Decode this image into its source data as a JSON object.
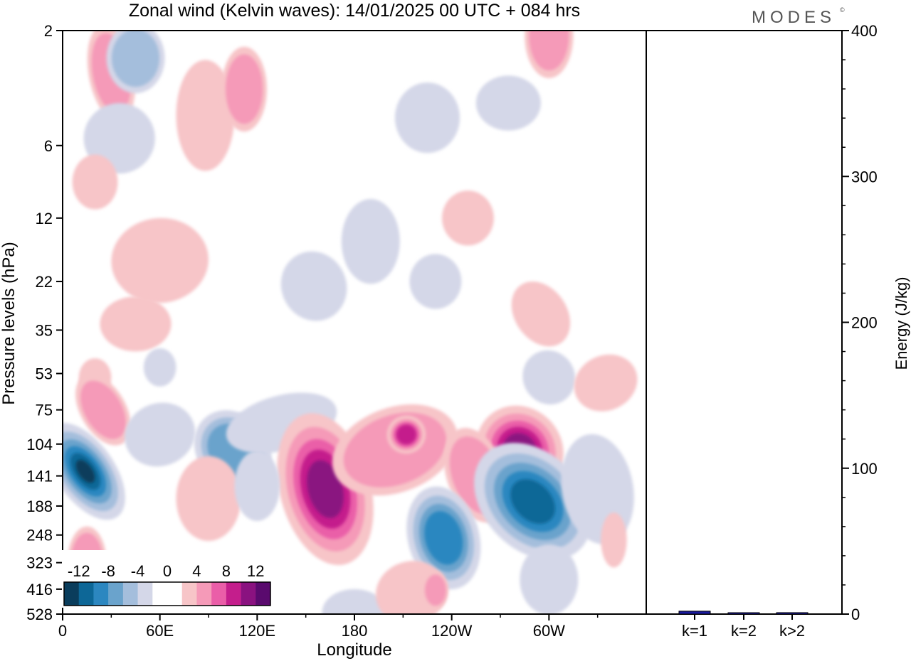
{
  "title": "Zonal wind (Kelvin waves):  14/01/2025  00 UTC  + 084 hrs",
  "logo": "MODES",
  "logo_mark": "©",
  "chart_data": [
    {
      "type": "heatmap",
      "title": "Zonal wind (Kelvin waves):  14/01/2025  00 UTC  + 084 hrs",
      "xlabel": "Longitude",
      "ylabel": "Pressure levels (hPa)",
      "x_ticks": [
        "0",
        "60E",
        "120E",
        "180",
        "120W",
        "60W"
      ],
      "y_ticks": [
        "2",
        "6",
        "12",
        "22",
        "35",
        "53",
        "75",
        "104",
        "141",
        "188",
        "248",
        "323",
        "416",
        "528"
      ],
      "colorbar": {
        "labels": [
          "-12",
          "-8",
          "-4",
          "0",
          "4",
          "8",
          "12"
        ],
        "colors": [
          "#0a3d5c",
          "#0d6797",
          "#2c87c0",
          "#6aa3cc",
          "#a4bedc",
          "#d4d7e8",
          "#ffffff",
          "#ffffff",
          "#f7c5c8",
          "#f59ab8",
          "#ea5ea8",
          "#c41e8c",
          "#8a1280",
          "#5a0a6e"
        ]
      },
      "features": [
        {
          "sign": "neg",
          "level": 6,
          "lon": 12,
          "p": 135
        },
        {
          "sign": "neg",
          "level": 2,
          "lon": 105,
          "p": 110
        },
        {
          "sign": "neg",
          "level": 5,
          "lon": 290,
          "p": 180
        },
        {
          "sign": "neg",
          "level": 4,
          "lon": 235,
          "p": 255
        },
        {
          "sign": "pos",
          "level": 4,
          "lon": 162,
          "p": 160
        },
        {
          "sign": "pos",
          "level": 4,
          "lon": 282,
          "p": 110
        },
        {
          "sign": "pos",
          "level": 3,
          "lon": 212,
          "p": 95
        },
        {
          "sign": "pos",
          "level": 2,
          "lon": 22,
          "p": 72
        }
      ]
    },
    {
      "type": "bar",
      "categories": [
        "k=1",
        "k=2",
        "k>2"
      ],
      "values": [
        2,
        0.5,
        1
      ],
      "ylabel": "Energy (J/kg)",
      "ylim": [
        0,
        400
      ],
      "y_ticks": [
        "0",
        "100",
        "200",
        "300",
        "400"
      ],
      "bar_color": "#1a1aa0"
    }
  ]
}
